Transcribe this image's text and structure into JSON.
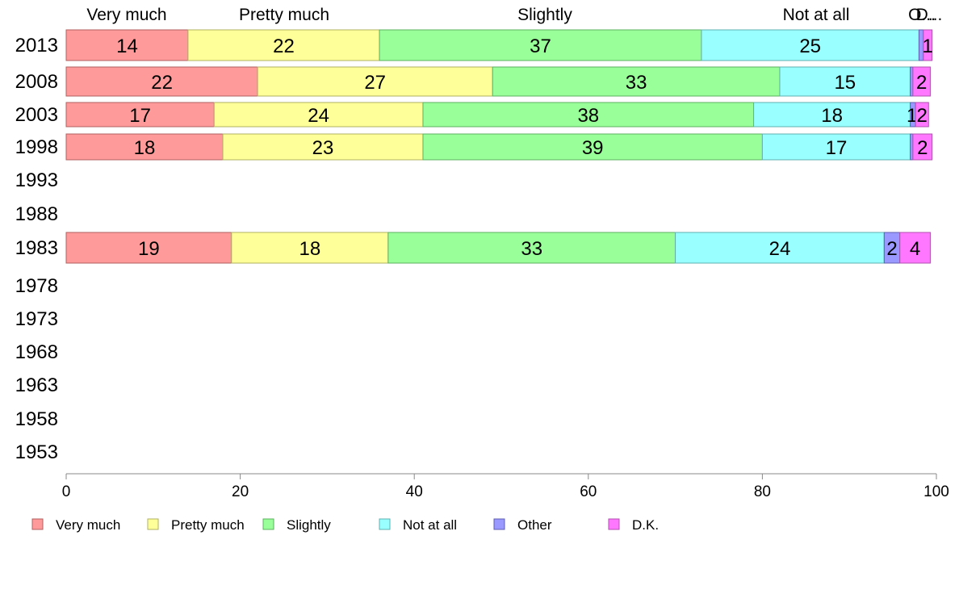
{
  "chart_data": {
    "type": "bar",
    "orientation": "horizontal",
    "stacked": true,
    "title": "",
    "xlabel": "",
    "ylabel": "",
    "xlim": [
      0,
      100
    ],
    "x_ticks": [
      0,
      20,
      40,
      60,
      80,
      100
    ],
    "grid": false,
    "legend_position": "bottom",
    "categories": [
      "2013",
      "2008",
      "2003",
      "1998",
      "1993",
      "1988",
      "1983",
      "1978",
      "1973",
      "1968",
      "1963",
      "1958",
      "1953"
    ],
    "top_labels": [
      "Very much",
      "Pretty much",
      "Slightly",
      "Not at all",
      "O...",
      "D..."
    ],
    "series": [
      {
        "name": "Very much",
        "color": "#ff9a9a",
        "stroke": "#b06060",
        "values": [
          14,
          22,
          17,
          18,
          null,
          null,
          19,
          null,
          null,
          null,
          null,
          null,
          null
        ]
      },
      {
        "name": "Pretty much",
        "color": "#ffff99",
        "stroke": "#b0b060",
        "values": [
          22,
          27,
          24,
          23,
          null,
          null,
          18,
          null,
          null,
          null,
          null,
          null,
          null
        ]
      },
      {
        "name": "Slightly",
        "color": "#99ff99",
        "stroke": "#60b060",
        "values": [
          37,
          33,
          38,
          39,
          null,
          null,
          33,
          null,
          null,
          null,
          null,
          null,
          null
        ]
      },
      {
        "name": "Not at all",
        "color": "#99ffff",
        "stroke": "#60b0b0",
        "values": [
          25,
          15,
          18,
          17,
          null,
          null,
          24,
          null,
          null,
          null,
          null,
          null,
          null
        ]
      },
      {
        "name": "Other",
        "color": "#9999ff",
        "stroke": "#6060b0",
        "values": [
          0.5,
          0.3,
          0.6,
          0.3,
          null,
          null,
          1.8,
          null,
          null,
          null,
          null,
          null,
          null
        ]
      },
      {
        "name": "D.K.",
        "color": "#ff77ff",
        "stroke": "#b050b0",
        "values": [
          1,
          2,
          1.5,
          2.2,
          null,
          null,
          3.5,
          null,
          null,
          null,
          null,
          null,
          null
        ]
      }
    ],
    "data_labels": [
      [
        "14",
        "22",
        "37",
        "25",
        "",
        "1"
      ],
      [
        "22",
        "27",
        "33",
        "15",
        "",
        "2"
      ],
      [
        "17",
        "24",
        "38",
        "18",
        "1",
        "2"
      ],
      [
        "18",
        "23",
        "39",
        "17",
        "",
        "2"
      ],
      null,
      null,
      [
        "19",
        "18",
        "33",
        "24",
        "2",
        "4"
      ],
      null,
      null,
      null,
      null,
      null,
      null
    ]
  }
}
